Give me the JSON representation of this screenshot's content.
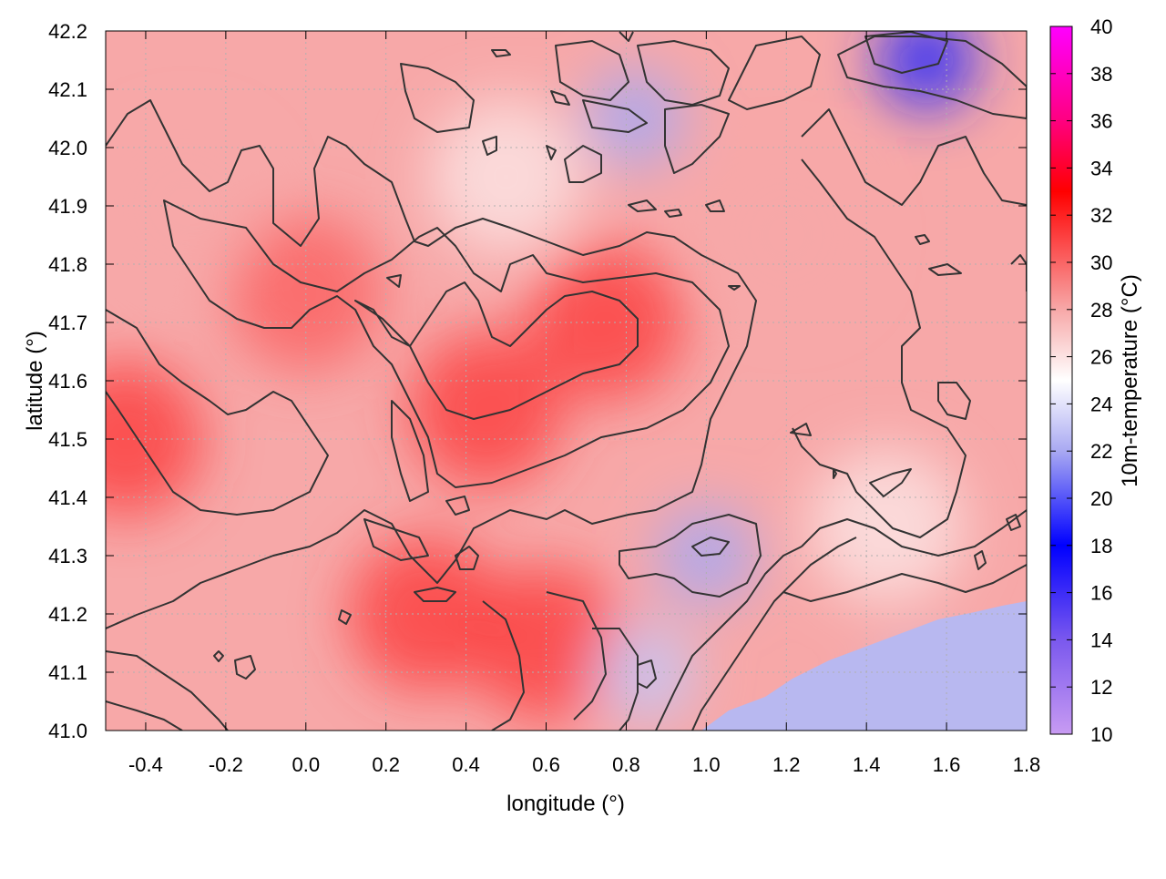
{
  "chart_data": {
    "type": "heatmap",
    "title": "",
    "xlabel": "longitude (°)",
    "ylabel": "latitude (°)",
    "xlim": [
      -0.5,
      1.8
    ],
    "ylim": [
      41.0,
      42.2
    ],
    "x_ticks": [
      "-0.4",
      "-0.2",
      "0.0",
      "0.2",
      "0.4",
      "0.6",
      "0.8",
      "1.0",
      "1.2",
      "1.4",
      "1.6",
      "1.8"
    ],
    "y_ticks": [
      "41.0",
      "41.1",
      "41.2",
      "41.3",
      "41.4",
      "41.5",
      "41.6",
      "41.7",
      "41.8",
      "41.9",
      "42.0",
      "42.1",
      "42.2"
    ],
    "grid": true,
    "colorbar": {
      "label": "10m-temperature (°C)",
      "range": [
        10,
        40
      ],
      "ticks": [
        "10",
        "12",
        "14",
        "16",
        "18",
        "20",
        "22",
        "24",
        "26",
        "28",
        "30",
        "32",
        "34",
        "36",
        "38",
        "40"
      ],
      "stops": [
        {
          "value": 10,
          "color": "#c89bf2"
        },
        {
          "value": 14,
          "color": "#7a58ee"
        },
        {
          "value": 18,
          "color": "#0000ff"
        },
        {
          "value": 22,
          "color": "#a9a9f2"
        },
        {
          "value": 25,
          "color": "#ffffff"
        },
        {
          "value": 28,
          "color": "#f7a8a8"
        },
        {
          "value": 33,
          "color": "#ff0000"
        },
        {
          "value": 36,
          "color": "#ff0080"
        },
        {
          "value": 40,
          "color": "#ff00ff"
        }
      ]
    },
    "field_summary": [
      {
        "lon": -0.45,
        "lat": 41.5,
        "temp": 31
      },
      {
        "lon": 0.0,
        "lat": 41.75,
        "temp": 30
      },
      {
        "lon": 0.45,
        "lat": 41.55,
        "temp": 31
      },
      {
        "lon": 0.75,
        "lat": 41.7,
        "temp": 31
      },
      {
        "lon": 0.3,
        "lat": 41.2,
        "temp": 31
      },
      {
        "lon": 0.6,
        "lat": 41.15,
        "temp": 31
      },
      {
        "lon": -0.3,
        "lat": 41.9,
        "temp": 28
      },
      {
        "lon": 0.5,
        "lat": 41.95,
        "temp": 26
      },
      {
        "lon": 1.2,
        "lat": 41.85,
        "temp": 28
      },
      {
        "lon": 1.45,
        "lat": 41.35,
        "temp": 26
      },
      {
        "lon": 0.82,
        "lat": 42.05,
        "temp": 22
      },
      {
        "lon": 1.55,
        "lat": 42.15,
        "temp": 19
      },
      {
        "lon": 1.0,
        "lat": 41.3,
        "temp": 22
      },
      {
        "lon": 1.55,
        "lat": 41.05,
        "temp": 23
      },
      {
        "lon": 0.85,
        "lat": 41.1,
        "temp": 23
      }
    ],
    "contour_levels": [
      26,
      28,
      30
    ]
  }
}
